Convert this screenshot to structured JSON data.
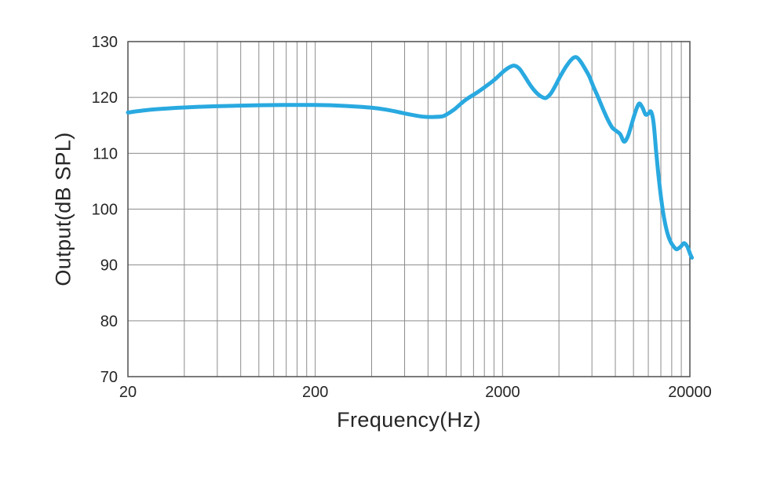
{
  "page": {
    "background": "#ffffff"
  },
  "chart_data": {
    "type": "line",
    "title": "",
    "xlabel": "Frequency(Hz)",
    "ylabel": "Output(dB SPL)",
    "x_scale": "log",
    "xlim": [
      20,
      20000
    ],
    "ylim": [
      70,
      130
    ],
    "grid": true,
    "legend": "none",
    "x_ticks": [
      {
        "value": 20,
        "label": "20"
      },
      {
        "value": 200,
        "label": "200"
      },
      {
        "value": 2000,
        "label": "2000"
      },
      {
        "value": 20000,
        "label": "20000"
      }
    ],
    "y_ticks": [
      {
        "value": 130,
        "label": "130"
      },
      {
        "value": 120,
        "label": "120"
      },
      {
        "value": 110,
        "label": "110"
      },
      {
        "value": 100,
        "label": "100"
      },
      {
        "value": 90,
        "label": "90"
      },
      {
        "value": 80,
        "label": "80"
      },
      {
        "value": 70,
        "label": "70"
      }
    ],
    "x_gridlines": [
      20,
      40,
      60,
      80,
      100,
      120,
      140,
      160,
      180,
      200,
      400,
      600,
      800,
      1000,
      1200,
      1400,
      1600,
      1800,
      2000,
      4000,
      6000,
      8000,
      10000,
      12000,
      14000,
      16000,
      18000,
      20000
    ],
    "y_gridlines": [
      70,
      80,
      90,
      100,
      110,
      120,
      130
    ],
    "colors": {
      "curve": "#29A9E0",
      "grid": "#8c8c8c",
      "frame": "#4f4f4f",
      "text": "#262626"
    },
    "series": [
      {
        "name": "Output (dB SPL) vs Frequency",
        "color": "#29A9E0",
        "points": [
          [
            20,
            117.3
          ],
          [
            24,
            117.65
          ],
          [
            30,
            117.95
          ],
          [
            40,
            118.2
          ],
          [
            55,
            118.4
          ],
          [
            75,
            118.5
          ],
          [
            100,
            118.6
          ],
          [
            140,
            118.65
          ],
          [
            200,
            118.65
          ],
          [
            260,
            118.55
          ],
          [
            320,
            118.4
          ],
          [
            400,
            118.15
          ],
          [
            480,
            117.8
          ],
          [
            560,
            117.35
          ],
          [
            650,
            116.9
          ],
          [
            750,
            116.55
          ],
          [
            850,
            116.5
          ],
          [
            950,
            116.6
          ],
          [
            1000,
            116.9
          ],
          [
            1100,
            117.8
          ],
          [
            1200,
            118.9
          ],
          [
            1300,
            119.8
          ],
          [
            1450,
            120.8
          ],
          [
            1600,
            121.8
          ],
          [
            1800,
            123.1
          ],
          [
            2000,
            124.5
          ],
          [
            2150,
            125.3
          ],
          [
            2300,
            125.7
          ],
          [
            2450,
            125.2
          ],
          [
            2600,
            124.0
          ],
          [
            2800,
            122.3
          ],
          [
            3000,
            121.0
          ],
          [
            3200,
            120.2
          ],
          [
            3400,
            119.9
          ],
          [
            3600,
            120.6
          ],
          [
            3800,
            121.9
          ],
          [
            4100,
            124.0
          ],
          [
            4400,
            125.7
          ],
          [
            4700,
            126.9
          ],
          [
            4950,
            127.2
          ],
          [
            5200,
            126.5
          ],
          [
            5500,
            125.2
          ],
          [
            5800,
            123.8
          ],
          [
            6100,
            122.0
          ],
          [
            6500,
            119.9
          ],
          [
            6900,
            117.8
          ],
          [
            7300,
            116.0
          ],
          [
            7700,
            114.6
          ],
          [
            8100,
            114.0
          ],
          [
            8500,
            113.4
          ],
          [
            8900,
            112.1
          ],
          [
            9300,
            112.9
          ],
          [
            9700,
            114.8
          ],
          [
            10100,
            116.8
          ],
          [
            10500,
            118.4
          ],
          [
            10800,
            118.9
          ],
          [
            11200,
            118.1
          ],
          [
            11600,
            116.95
          ],
          [
            12000,
            117.1
          ],
          [
            12400,
            117.45
          ],
          [
            12800,
            115.5
          ],
          [
            13200,
            110.5
          ],
          [
            13600,
            106.0
          ],
          [
            14100,
            101.5
          ],
          [
            14600,
            98.2
          ],
          [
            15200,
            95.6
          ],
          [
            15800,
            94.1
          ],
          [
            16400,
            93.3
          ],
          [
            17000,
            92.8
          ],
          [
            17900,
            93.3
          ],
          [
            18600,
            93.9
          ],
          [
            19300,
            93.4
          ],
          [
            19800,
            92.5
          ],
          [
            20100,
            91.9
          ],
          [
            20500,
            91.3
          ]
        ]
      }
    ]
  }
}
